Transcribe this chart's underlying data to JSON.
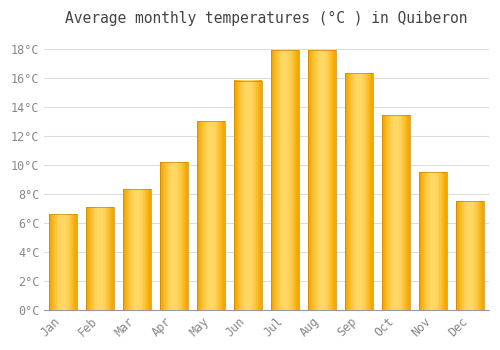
{
  "title": "Average monthly temperatures (°C ) in Quiberon",
  "months": [
    "Jan",
    "Feb",
    "Mar",
    "Apr",
    "May",
    "Jun",
    "Jul",
    "Aug",
    "Sep",
    "Oct",
    "Nov",
    "Dec"
  ],
  "values": [
    6.6,
    7.1,
    8.3,
    10.2,
    13.0,
    15.8,
    17.9,
    17.9,
    16.3,
    13.4,
    9.5,
    7.5
  ],
  "bar_color_left": "#F5A800",
  "bar_color_center": "#FFD966",
  "bar_color_right": "#F5A800",
  "background_color": "#FFFFFF",
  "grid_color": "#DDDDDD",
  "title_color": "#444444",
  "tick_label_color": "#888888",
  "ylim": [
    0,
    19
  ],
  "yticks": [
    0,
    2,
    4,
    6,
    8,
    10,
    12,
    14,
    16,
    18
  ],
  "title_fontsize": 10.5,
  "tick_fontsize": 8.5,
  "bar_width": 0.75
}
